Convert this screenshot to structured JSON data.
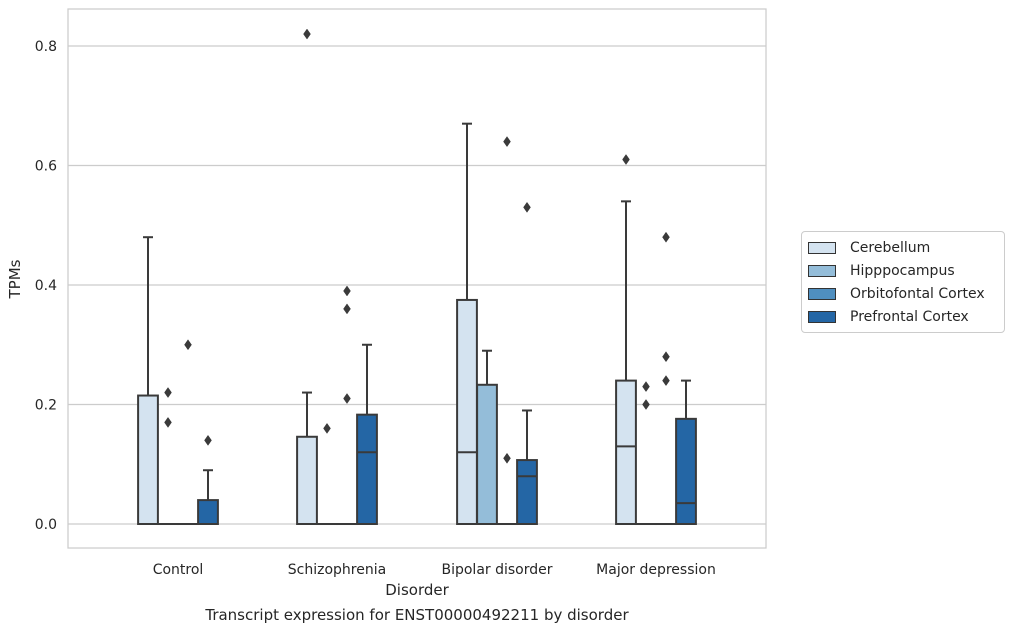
{
  "caption": "Transcript expression for ENST00000492211 by disorder",
  "chart_data": {
    "type": "box",
    "xlabel": "Disorder",
    "ylabel": "TPMs",
    "ylim": [
      -0.04,
      0.86
    ],
    "yticks": [
      0.0,
      0.2,
      0.4,
      0.6,
      0.8
    ],
    "ytick_labels": [
      "0.0",
      "0.2",
      "0.4",
      "0.6",
      "0.8"
    ],
    "grid": "horizontal",
    "legend_position": "right",
    "categories": [
      "Control",
      "Schizophrenia",
      "Bipolar disorder",
      "Major depression"
    ],
    "series": [
      {
        "name": "Cerebellum",
        "color": "#d4e3f0",
        "boxes": [
          {
            "min": 0.0,
            "q1": 0.0,
            "median": 0.0,
            "q3": 0.215,
            "max": 0.48,
            "outliers": []
          },
          {
            "min": 0.0,
            "q1": 0.0,
            "median": 0.0,
            "q3": 0.146,
            "max": 0.22,
            "outliers": [
              0.82
            ]
          },
          {
            "min": 0.0,
            "q1": 0.0,
            "median": 0.12,
            "q3": 0.375,
            "max": 0.67,
            "outliers": []
          },
          {
            "min": 0.0,
            "q1": 0.0,
            "median": 0.13,
            "q3": 0.24,
            "max": 0.54,
            "outliers": [
              0.61
            ]
          }
        ]
      },
      {
        "name": "Hipppocampus",
        "color": "#94bdd9",
        "boxes": [
          {
            "min": 0.0,
            "q1": 0.0,
            "median": 0.0,
            "q3": 0.0,
            "max": 0.0,
            "outliers": [
              0.17,
              0.22
            ]
          },
          {
            "min": 0.0,
            "q1": 0.0,
            "median": 0.0,
            "q3": 0.0,
            "max": 0.0,
            "outliers": [
              0.16
            ]
          },
          {
            "min": 0.0,
            "q1": 0.0,
            "median": 0.0,
            "q3": 0.233,
            "max": 0.29,
            "outliers": []
          },
          {
            "min": 0.0,
            "q1": 0.0,
            "median": 0.0,
            "q3": 0.0,
            "max": 0.0,
            "outliers": [
              0.2,
              0.23
            ]
          }
        ]
      },
      {
        "name": "Orbitofontal Cortex",
        "color": "#4f8fc0",
        "boxes": [
          {
            "min": 0.0,
            "q1": 0.0,
            "median": 0.0,
            "q3": 0.0,
            "max": 0.0,
            "outliers": [
              0.3
            ]
          },
          {
            "min": 0.0,
            "q1": 0.0,
            "median": 0.0,
            "q3": 0.0,
            "max": 0.0,
            "outliers": [
              0.21,
              0.36,
              0.39
            ]
          },
          {
            "min": 0.0,
            "q1": 0.0,
            "median": 0.0,
            "q3": 0.0,
            "max": 0.0,
            "outliers": [
              0.11,
              0.64
            ]
          },
          {
            "min": 0.0,
            "q1": 0.0,
            "median": 0.0,
            "q3": 0.0,
            "max": 0.0,
            "outliers": [
              0.24,
              0.28,
              0.48
            ]
          }
        ]
      },
      {
        "name": "Prefrontal Cortex",
        "color": "#2466a5",
        "boxes": [
          {
            "min": 0.0,
            "q1": 0.0,
            "median": 0.0,
            "q3": 0.04,
            "max": 0.09,
            "outliers": [
              0.14
            ]
          },
          {
            "min": 0.0,
            "q1": 0.0,
            "median": 0.12,
            "q3": 0.183,
            "max": 0.3,
            "outliers": []
          },
          {
            "min": 0.0,
            "q1": 0.0,
            "median": 0.08,
            "q3": 0.107,
            "max": 0.19,
            "outliers": [
              0.53
            ]
          },
          {
            "min": 0.0,
            "q1": 0.0,
            "median": 0.035,
            "q3": 0.176,
            "max": 0.24,
            "outliers": []
          }
        ]
      }
    ]
  }
}
